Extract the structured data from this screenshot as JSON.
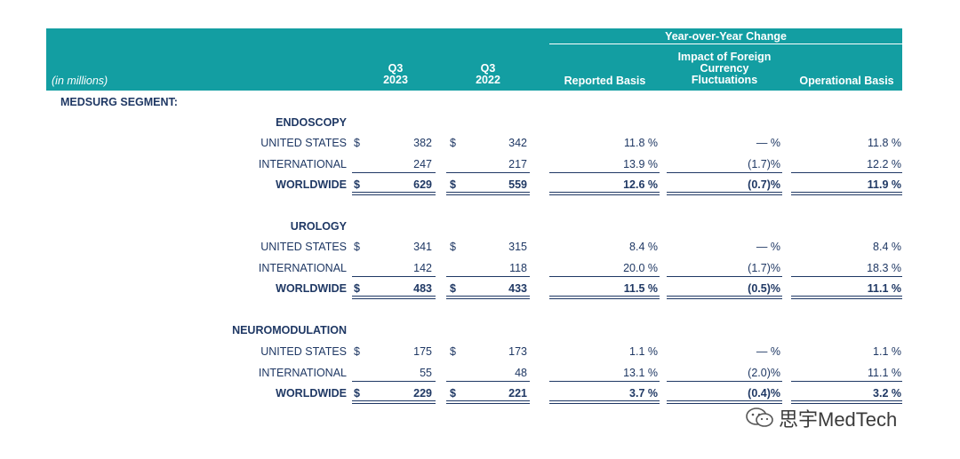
{
  "header": {
    "in_millions": "(in millions)",
    "q3_2023": [
      "Q3",
      "2023"
    ],
    "q3_2022": [
      "Q3",
      "2022"
    ],
    "yoy_title": "Year-over-Year Change",
    "reported": "Reported Basis",
    "impact": [
      "Impact of Foreign",
      "Currency",
      "Fluctuations"
    ],
    "operational": "Operational Basis"
  },
  "segment_title": "MEDSURG SEGMENT:",
  "row_labels": {
    "us": "UNITED STATES",
    "intl": "INTERNATIONAL",
    "ww": "WORLDWIDE"
  },
  "dollar_sign": "$",
  "groups": [
    {
      "name": "ENDOSCOPY",
      "us": {
        "q3_2023": "382",
        "q3_2022": "342",
        "reported": "11.8 %",
        "impact": "— %",
        "operational": "11.8 %"
      },
      "intl": {
        "q3_2023": "247",
        "q3_2022": "217",
        "reported": "13.9 %",
        "impact": "(1.7)%",
        "operational": "12.2 %"
      },
      "ww": {
        "q3_2023": "629",
        "q3_2022": "559",
        "reported": "12.6 %",
        "impact": "(0.7)%",
        "operational": "11.9 %"
      }
    },
    {
      "name": "UROLOGY",
      "us": {
        "q3_2023": "341",
        "q3_2022": "315",
        "reported": "8.4 %",
        "impact": "— %",
        "operational": "8.4 %"
      },
      "intl": {
        "q3_2023": "142",
        "q3_2022": "118",
        "reported": "20.0 %",
        "impact": "(1.7)%",
        "operational": "18.3 %"
      },
      "ww": {
        "q3_2023": "483",
        "q3_2022": "433",
        "reported": "11.5 %",
        "impact": "(0.5)%",
        "operational": "11.1 %"
      }
    },
    {
      "name": "NEUROMODULATION",
      "us": {
        "q3_2023": "175",
        "q3_2022": "173",
        "reported": "1.1 %",
        "impact": "— %",
        "operational": "1.1 %"
      },
      "intl": {
        "q3_2023": "55",
        "q3_2022": "48",
        "reported": "13.1 %",
        "impact": "(2.0)%",
        "operational": "11.1 %"
      },
      "ww": {
        "q3_2023": "229",
        "q3_2022": "221",
        "reported": "3.7 %",
        "impact": "(0.4)%",
        "operational": "3.2 %"
      }
    }
  ],
  "watermark": {
    "text": "思宇MedTech",
    "icon": "wechat-icon"
  }
}
